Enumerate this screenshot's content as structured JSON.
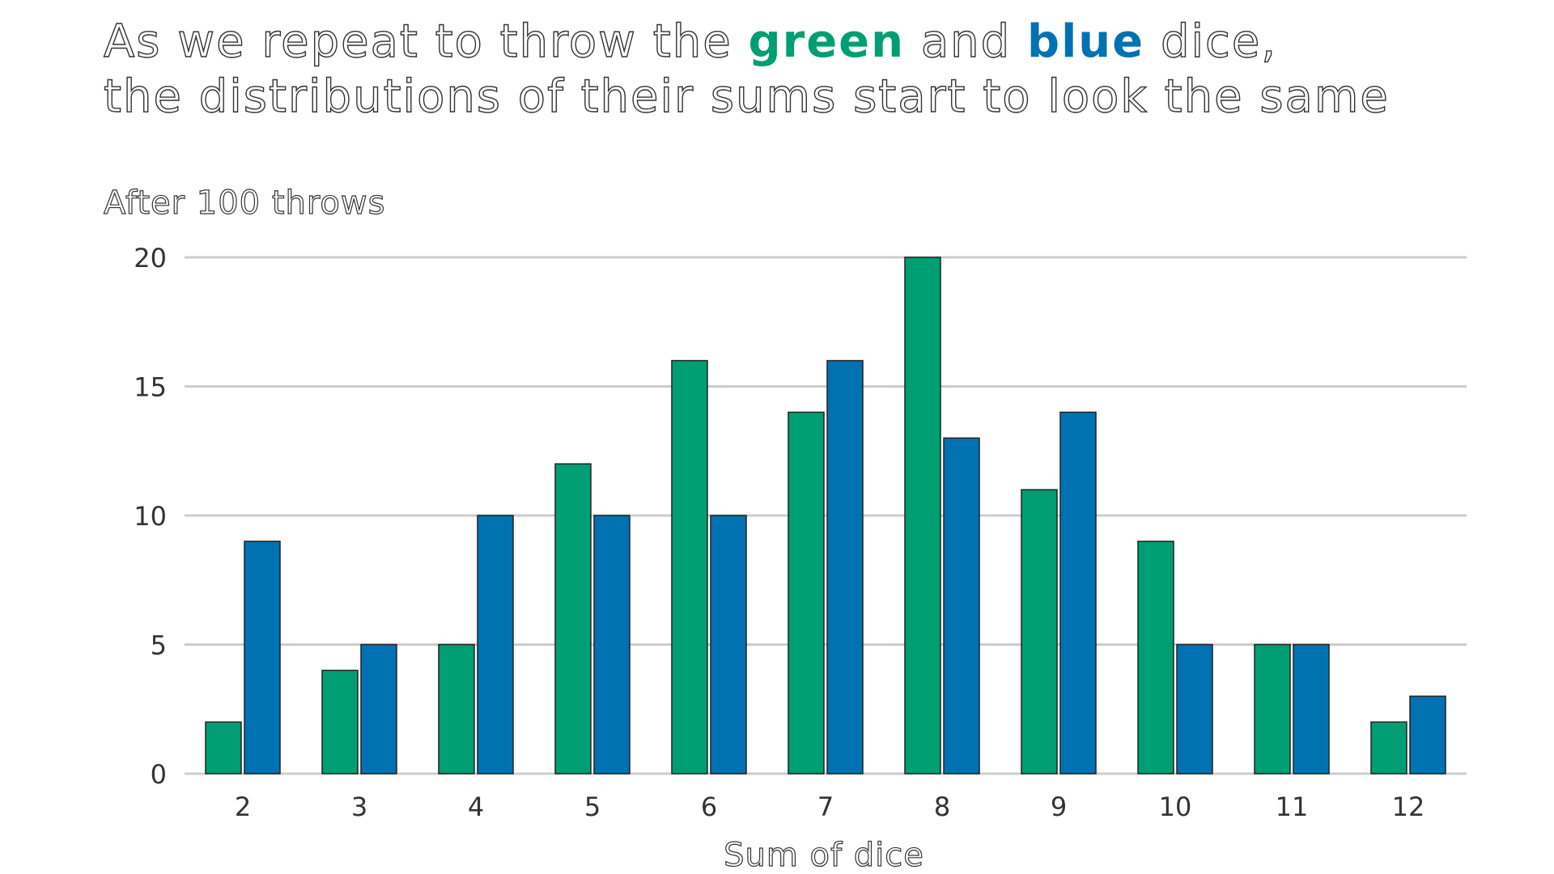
{
  "title": {
    "line1": {
      "pre": "As  we  repeat to throw the ",
      "green": "green",
      "mid": " and ",
      "blue": "blue",
      "post": " dice,"
    },
    "line2": "the distributions of their sums  start to look the same"
  },
  "colors": {
    "green": "#009e73",
    "blue": "#0072b2",
    "grid": "#cccccc",
    "text": "#333333"
  },
  "chart_data": {
    "type": "bar",
    "title": "As  we  repeat to throw the green and blue dice, the distributions of their sums  start to look the same",
    "subtitle": "After 100 throws",
    "xlabel": "Sum of dice",
    "ylabel": "",
    "categories": [
      "2",
      "3",
      "4",
      "5",
      "6",
      "7",
      "8",
      "9",
      "10",
      "11",
      "12"
    ],
    "series": [
      {
        "values": [
          2,
          4,
          5,
          12,
          16,
          14,
          20,
          11,
          9,
          5,
          2
        ],
        "color": "#009e73"
      },
      {
        "values": [
          9,
          5,
          10,
          10,
          10,
          16,
          13,
          14,
          5,
          5,
          3
        ],
        "color": "#0072b2"
      }
    ],
    "ylim": [
      0,
      20
    ],
    "yticks": [
      0,
      5,
      10,
      15,
      20
    ],
    "grid": true,
    "legend": "none"
  }
}
